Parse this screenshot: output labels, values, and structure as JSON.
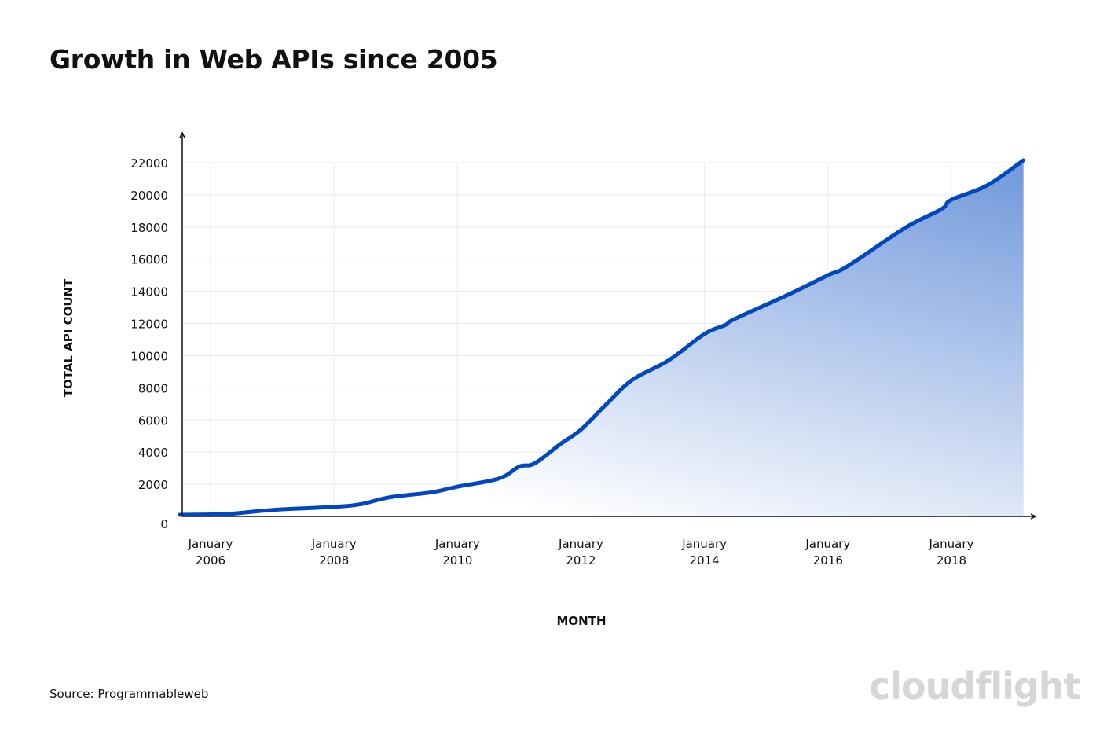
{
  "title": "Growth in Web APIs since 2005",
  "source": "Source: Programmableweb",
  "logo": "cloudflight",
  "colors": {
    "line": "#0047c2",
    "fill_top": "#7098db",
    "fill_bottom": "#ffffff",
    "grid": "#ebebeb"
  },
  "chart_data": {
    "type": "area",
    "title": "Growth in Web APIs since 2005",
    "xlabel": "MONTH",
    "ylabel": "TOTAL API COUNT",
    "ylim": [
      0,
      22000
    ],
    "xlim": [
      "2005-07",
      "2019-03"
    ],
    "grid": true,
    "yticks": [
      0,
      2000,
      4000,
      6000,
      8000,
      10000,
      12000,
      14000,
      16000,
      18000,
      20000,
      22000
    ],
    "xticks": [
      {
        "date": "2006-01",
        "line1": "January",
        "line2": "2006"
      },
      {
        "date": "2008-01",
        "line1": "January",
        "line2": "2008"
      },
      {
        "date": "2010-01",
        "line1": "January",
        "line2": "2010"
      },
      {
        "date": "2012-01",
        "line1": "January",
        "line2": "2012"
      },
      {
        "date": "2014-01",
        "line1": "January",
        "line2": "2014"
      },
      {
        "date": "2016-01",
        "line1": "January",
        "line2": "2016"
      },
      {
        "date": "2018-01",
        "line1": "January",
        "line2": "2018"
      }
    ],
    "series": [
      {
        "x": [
          "2005-07",
          "2006-04",
          "2007-01",
          "2008-01",
          "2008-06",
          "2008-12",
          "2009-08",
          "2010-01",
          "2010-09",
          "2011-01",
          "2011-04",
          "2011-09",
          "2012-01",
          "2012-06",
          "2012-11",
          "2013-06",
          "2014-01",
          "2014-05",
          "2014-07",
          "2015-05",
          "2016-01",
          "2016-05",
          "2017-04",
          "2017-11",
          "2018-01",
          "2018-08",
          "2019-03"
        ],
        "y": [
          100,
          150,
          400,
          600,
          750,
          1200,
          1500,
          1850,
          2350,
          3100,
          3300,
          4500,
          5400,
          7000,
          8500,
          9700,
          11350,
          11900,
          12300,
          13750,
          15000,
          15600,
          17950,
          19100,
          19700,
          20600,
          22150
        ]
      }
    ]
  }
}
